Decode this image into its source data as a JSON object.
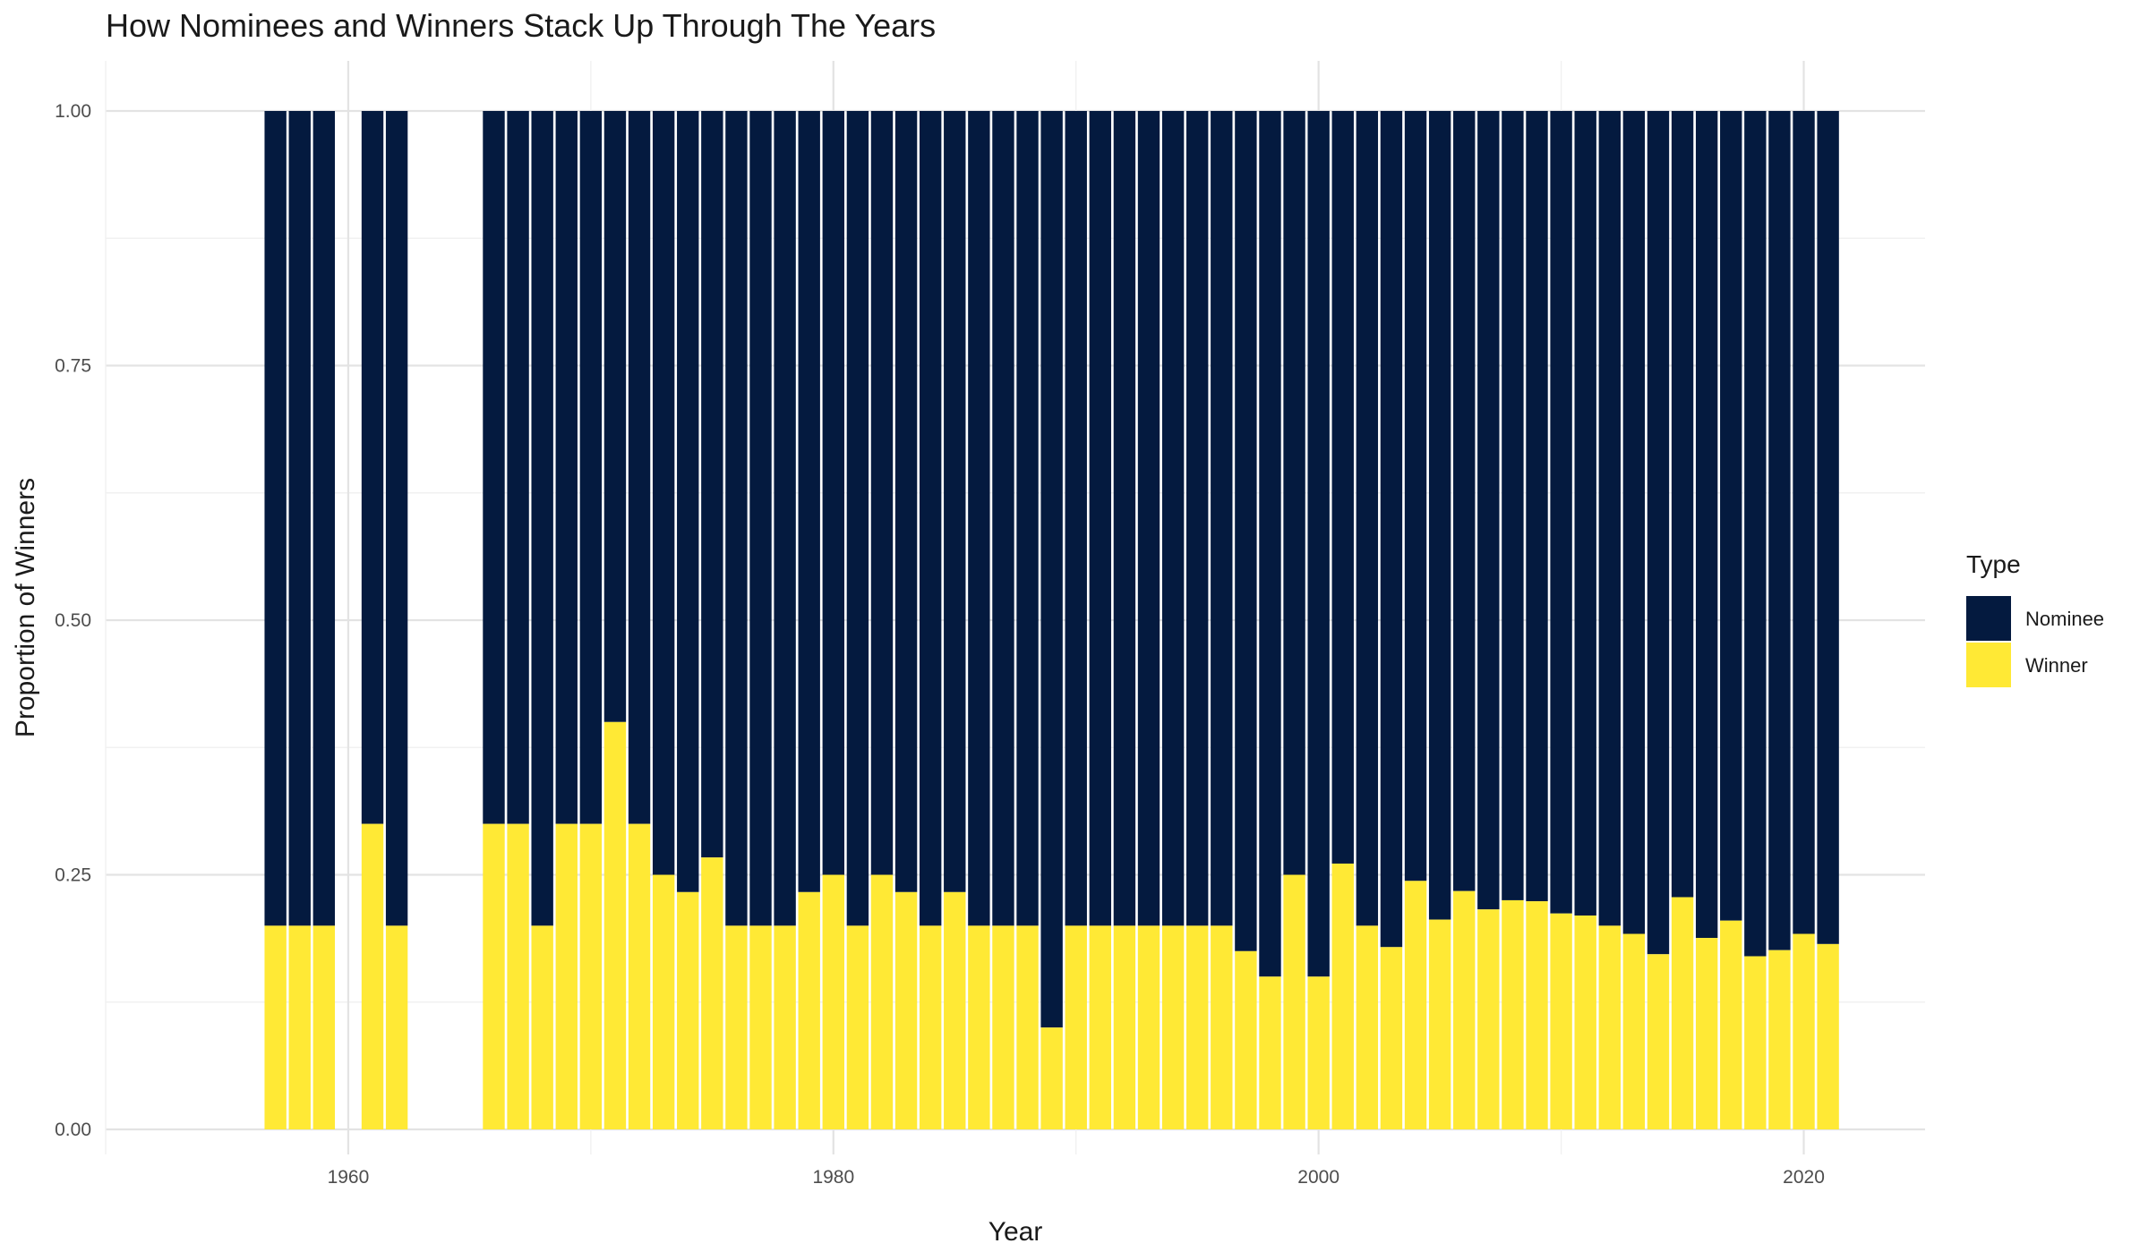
{
  "chart_data": {
    "type": "bar",
    "stacked": true,
    "title": "How Nominees and Winners Stack Up Through The Years",
    "xlabel": "Year",
    "ylabel": "Proportion of Winners",
    "xlim": [
      1950,
      2025
    ],
    "ylim": [
      0,
      1
    ],
    "x_ticks": [
      1960,
      1980,
      2000,
      2020
    ],
    "y_ticks": [
      0,
      0.25,
      0.5,
      0.75,
      1
    ],
    "x_tick_labels": [
      "1960",
      "1980",
      "2000",
      "2020"
    ],
    "y_tick_labels": [
      "0.00",
      "0.25",
      "0.50",
      "0.75",
      "1.00"
    ],
    "grid": true,
    "legend": {
      "title": "Type",
      "placement": "right",
      "entries": [
        {
          "label": "Nominee",
          "color": "#041A3F"
        },
        {
          "label": "Winner",
          "color": "#FFE935"
        }
      ]
    },
    "x": [
      1957,
      1958,
      1959,
      1961,
      1962,
      1966,
      1967,
      1968,
      1969,
      1970,
      1971,
      1972,
      1973,
      1974,
      1975,
      1976,
      1977,
      1978,
      1979,
      1980,
      1981,
      1982,
      1983,
      1984,
      1985,
      1986,
      1987,
      1988,
      1989,
      1990,
      1991,
      1992,
      1993,
      1994,
      1995,
      1996,
      1997,
      1998,
      1999,
      2000,
      2001,
      2002,
      2003,
      2004,
      2005,
      2006,
      2007,
      2008,
      2009,
      2010,
      2011,
      2012,
      2013,
      2014,
      2015,
      2016,
      2017,
      2018,
      2019,
      2020,
      2021
    ],
    "series": [
      {
        "name": "Winner",
        "color": "#FFE935",
        "values": [
          0.2,
          0.2,
          0.2,
          0.3,
          0.2,
          0.3,
          0.3,
          0.2,
          0.3,
          0.3,
          0.4,
          0.3,
          0.25,
          0.233,
          0.267,
          0.2,
          0.2,
          0.2,
          0.233,
          0.25,
          0.2,
          0.25,
          0.233,
          0.2,
          0.233,
          0.2,
          0.2,
          0.2,
          0.1,
          0.2,
          0.2,
          0.2,
          0.2,
          0.2,
          0.2,
          0.2,
          0.175,
          0.15,
          0.25,
          0.15,
          0.261,
          0.2,
          0.179,
          0.244,
          0.206,
          0.234,
          0.216,
          0.225,
          0.224,
          0.212,
          0.21,
          0.2,
          0.192,
          0.172,
          0.228,
          0.188,
          0.205,
          0.17,
          0.176,
          0.192,
          0.182
        ]
      },
      {
        "name": "Nominee",
        "color": "#041A3F",
        "values": [
          0.8,
          0.8,
          0.8,
          0.7,
          0.8,
          0.7,
          0.7,
          0.8,
          0.7,
          0.7,
          0.6,
          0.7,
          0.75,
          0.767,
          0.733,
          0.8,
          0.8,
          0.8,
          0.767,
          0.75,
          0.8,
          0.75,
          0.767,
          0.8,
          0.767,
          0.8,
          0.8,
          0.8,
          0.9,
          0.8,
          0.8,
          0.8,
          0.8,
          0.8,
          0.8,
          0.8,
          0.825,
          0.85,
          0.75,
          0.85,
          0.739,
          0.8,
          0.821,
          0.756,
          0.794,
          0.766,
          0.784,
          0.775,
          0.776,
          0.788,
          0.79,
          0.8,
          0.808,
          0.828,
          0.772,
          0.812,
          0.795,
          0.83,
          0.824,
          0.808,
          0.818
        ]
      }
    ]
  }
}
